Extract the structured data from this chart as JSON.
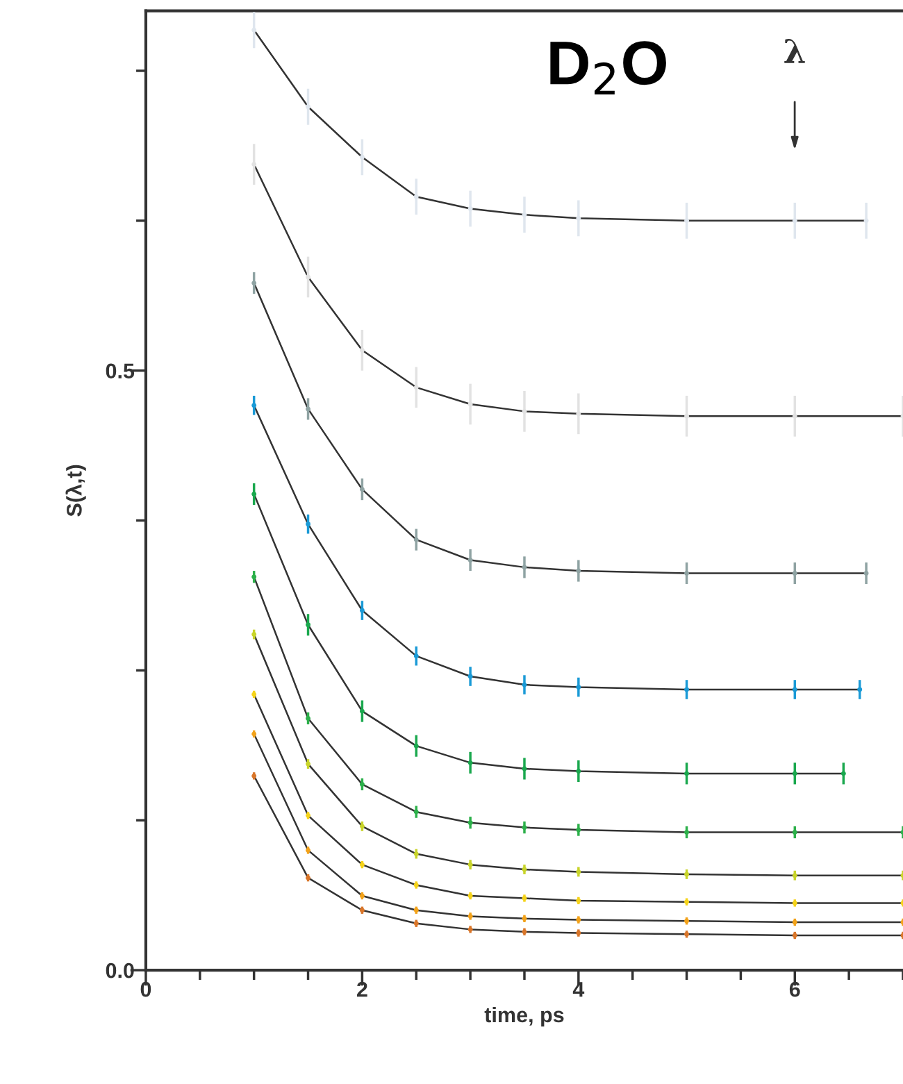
{
  "chart_data": {
    "type": "line",
    "xlabel": "time, ps",
    "ylabel": "S(λ,t)",
    "xlim": [
      0,
      7
    ],
    "ylim": [
      0,
      0.8
    ],
    "xticks": [
      0,
      {
        "value": 0.5,
        "label": null
      },
      {
        "value": 1,
        "label": null
      },
      {
        "value": 1.5,
        "label": null
      },
      2,
      {
        "value": 2.5,
        "label": null
      },
      {
        "value": 3,
        "label": null
      },
      {
        "value": 3.5,
        "label": null
      },
      4,
      {
        "value": 4.5,
        "label": null
      },
      {
        "value": 5,
        "label": null
      },
      {
        "value": 5.5,
        "label": null
      },
      6,
      {
        "value": 6.5,
        "label": null
      },
      {
        "value": 7,
        "label": null
      }
    ],
    "yticks": [
      {
        "value": 0,
        "label": "0.0"
      },
      {
        "value": 0.125,
        "label": null
      },
      {
        "value": 0.25,
        "label": null
      },
      {
        "value": 0.375,
        "label": null
      },
      0.5,
      {
        "value": 0.625,
        "label": null
      },
      {
        "value": 0.75,
        "label": null
      }
    ],
    "annotations": [
      "D$_{2}$O",
      "λ"
    ],
    "series": [
      {
        "color": "#333333",
        "x": [
          1,
          1.5,
          2,
          2.5,
          3,
          3.5,
          4,
          5,
          6,
          6.66
        ],
        "values": [
          0.784,
          0.72,
          0.678,
          0.645,
          0.635,
          0.63,
          0.627,
          0.625,
          0.625,
          0.625
        ]
      },
      {
        "color": "#333333",
        "x": [
          1,
          1.5,
          2,
          2.5,
          3,
          3.5,
          4,
          5,
          6,
          7
        ],
        "values": [
          0.672,
          0.578,
          0.517,
          0.486,
          0.472,
          0.466,
          0.464,
          0.462,
          0.462,
          0.462
        ]
      },
      {
        "color": "#333333",
        "x": [
          1,
          1.5,
          2,
          2.5,
          3,
          3.5,
          4,
          5,
          6,
          6.66
        ],
        "values": [
          0.573,
          0.468,
          0.401,
          0.359,
          0.342,
          0.336,
          0.333,
          0.331,
          0.331,
          0.331
        ]
      },
      {
        "color": "#333333",
        "x": [
          1,
          1.5,
          2,
          2.5,
          3,
          3.5,
          4,
          5,
          6,
          6.6
        ],
        "values": [
          0.471,
          0.372,
          0.3,
          0.262,
          0.245,
          0.238,
          0.236,
          0.234,
          0.234,
          0.234
        ]
      },
      {
        "color": "#333333",
        "x": [
          1,
          1.5,
          2,
          2.5,
          3,
          3.5,
          4,
          5,
          6,
          6.45
        ],
        "values": [
          0.397,
          0.288,
          0.216,
          0.187,
          0.173,
          0.168,
          0.166,
          0.164,
          0.164,
          0.164
        ]
      },
      {
        "color": "#333333",
        "x": [
          1,
          1.5,
          2,
          2.5,
          3,
          3.5,
          4,
          5,
          6,
          7
        ],
        "values": [
          0.328,
          0.21,
          0.155,
          0.132,
          0.123,
          0.119,
          0.117,
          0.115,
          0.115,
          0.115
        ]
      },
      {
        "color": "#333333",
        "x": [
          1,
          1.5,
          2,
          2.5,
          3,
          3.5,
          4,
          5,
          6,
          7
        ],
        "values": [
          0.28,
          0.172,
          0.12,
          0.097,
          0.088,
          0.084,
          0.082,
          0.08,
          0.079,
          0.079
        ]
      },
      {
        "color": "#333333",
        "x": [
          1,
          1.5,
          2,
          2.5,
          3,
          3.5,
          4,
          5,
          6,
          7
        ],
        "values": [
          0.23,
          0.129,
          0.088,
          0.071,
          0.062,
          0.06,
          0.058,
          0.057,
          0.056,
          0.056
        ]
      },
      {
        "color": "#333333",
        "x": [
          1,
          1.5,
          2,
          2.5,
          3,
          3.5,
          4,
          5,
          6,
          7
        ],
        "values": [
          0.197,
          0.1,
          0.062,
          0.05,
          0.045,
          0.043,
          0.042,
          0.041,
          0.04,
          0.04
        ]
      },
      {
        "color": "#333333",
        "x": [
          1,
          1.5,
          2,
          2.5,
          3,
          3.5,
          4,
          5,
          6,
          7
        ],
        "values": [
          0.162,
          0.077,
          0.05,
          0.039,
          0.034,
          0.032,
          0.031,
          0.03,
          0.029,
          0.029
        ]
      },
      {
        "type": "scatter",
        "marker": "circle",
        "color": "#dfe6ee",
        "x": [
          1,
          1.5,
          2,
          2.5,
          3,
          3.5,
          4,
          5,
          6,
          6.66
        ],
        "values": [
          0.784,
          0.72,
          0.678,
          0.645,
          0.635,
          0.63,
          0.627,
          0.625,
          0.625,
          0.625
        ],
        "errors": [
          0.015,
          0.015,
          0.015,
          0.015,
          0.015,
          0.015,
          0.015,
          0.015,
          0.015,
          0.015
        ]
      },
      {
        "type": "scatter",
        "marker": "circle",
        "color": "#e2e2e2",
        "x": [
          1,
          1.5,
          2,
          2.5,
          3,
          3.5,
          4,
          5,
          6,
          7
        ],
        "values": [
          0.672,
          0.578,
          0.517,
          0.486,
          0.472,
          0.466,
          0.464,
          0.462,
          0.462,
          0.462
        ],
        "errors": [
          0.017,
          0.017,
          0.017,
          0.017,
          0.017,
          0.017,
          0.017,
          0.017,
          0.017,
          0.017
        ]
      },
      {
        "type": "scatter",
        "marker": "circle",
        "color": "#8fa3a3",
        "x": [
          1,
          1.5,
          2,
          2.5,
          3,
          3.5,
          4,
          5,
          6,
          6.66
        ],
        "values": [
          0.573,
          0.468,
          0.401,
          0.359,
          0.342,
          0.336,
          0.333,
          0.331,
          0.331,
          0.331
        ],
        "errors": [
          0.009,
          0.009,
          0.009,
          0.009,
          0.009,
          0.009,
          0.009,
          0.009,
          0.009,
          0.009
        ]
      },
      {
        "type": "scatter",
        "marker": "circle",
        "color": "#1a9ad6",
        "x": [
          1,
          1.5,
          2,
          2.5,
          3,
          3.5,
          4,
          5,
          6,
          6.6
        ],
        "values": [
          0.471,
          0.372,
          0.3,
          0.262,
          0.245,
          0.238,
          0.236,
          0.234,
          0.234,
          0.234
        ],
        "errors": [
          0.008,
          0.008,
          0.008,
          0.008,
          0.008,
          0.008,
          0.008,
          0.008,
          0.008,
          0.008
        ]
      },
      {
        "type": "scatter",
        "marker": "circle",
        "color": "#1aa84e",
        "x": [
          1,
          1.5,
          2,
          2.5,
          3,
          3.5,
          4,
          5,
          6,
          6.45
        ],
        "values": [
          0.397,
          0.288,
          0.216,
          0.187,
          0.173,
          0.168,
          0.166,
          0.164,
          0.164,
          0.164
        ],
        "errors": [
          0.009,
          0.009,
          0.009,
          0.009,
          0.009,
          0.009,
          0.009,
          0.009,
          0.009,
          0.009
        ]
      },
      {
        "type": "scatter",
        "marker": "circle",
        "color": "#2cb04a",
        "x": [
          1,
          1.5,
          2,
          2.5,
          3,
          3.5,
          4,
          5,
          6,
          7
        ],
        "values": [
          0.328,
          0.21,
          0.155,
          0.132,
          0.123,
          0.119,
          0.117,
          0.115,
          0.115,
          0.115
        ],
        "errors": [
          0.005,
          0.005,
          0.005,
          0.005,
          0.005,
          0.005,
          0.005,
          0.005,
          0.005,
          0.005
        ]
      },
      {
        "type": "scatter",
        "marker": "circle",
        "color": "#c8d42a",
        "x": [
          1,
          1.5,
          2,
          2.5,
          3,
          3.5,
          4,
          5,
          6,
          7
        ],
        "values": [
          0.28,
          0.172,
          0.12,
          0.097,
          0.088,
          0.084,
          0.082,
          0.08,
          0.079,
          0.079
        ],
        "errors": [
          0.004,
          0.004,
          0.004,
          0.004,
          0.004,
          0.004,
          0.004,
          0.004,
          0.004,
          0.004
        ]
      },
      {
        "type": "scatter",
        "marker": "circle",
        "color": "#f5d31a",
        "x": [
          1,
          1.5,
          2,
          2.5,
          3,
          3.5,
          4,
          5,
          6,
          7
        ],
        "values": [
          0.23,
          0.129,
          0.088,
          0.071,
          0.062,
          0.06,
          0.058,
          0.057,
          0.056,
          0.056
        ],
        "errors": [
          0.003,
          0.003,
          0.003,
          0.003,
          0.003,
          0.003,
          0.003,
          0.003,
          0.003,
          0.003
        ]
      },
      {
        "type": "scatter",
        "marker": "circle",
        "color": "#f2a21a",
        "x": [
          1,
          1.5,
          2,
          2.5,
          3,
          3.5,
          4,
          5,
          6,
          7
        ],
        "values": [
          0.197,
          0.1,
          0.062,
          0.05,
          0.045,
          0.043,
          0.042,
          0.041,
          0.04,
          0.04
        ],
        "errors": [
          0.003,
          0.003,
          0.003,
          0.003,
          0.003,
          0.003,
          0.003,
          0.003,
          0.003,
          0.003
        ]
      },
      {
        "type": "scatter",
        "marker": "circle",
        "color": "#d9762a",
        "x": [
          1,
          1.5,
          2,
          2.5,
          3,
          3.5,
          4,
          5,
          6,
          7
        ],
        "values": [
          0.162,
          0.077,
          0.05,
          0.039,
          0.034,
          0.032,
          0.031,
          0.03,
          0.029,
          0.029
        ],
        "errors": [
          0.003,
          0.003,
          0.003,
          0.003,
          0.003,
          0.003,
          0.003,
          0.003,
          0.003,
          0.003
        ]
      }
    ]
  }
}
